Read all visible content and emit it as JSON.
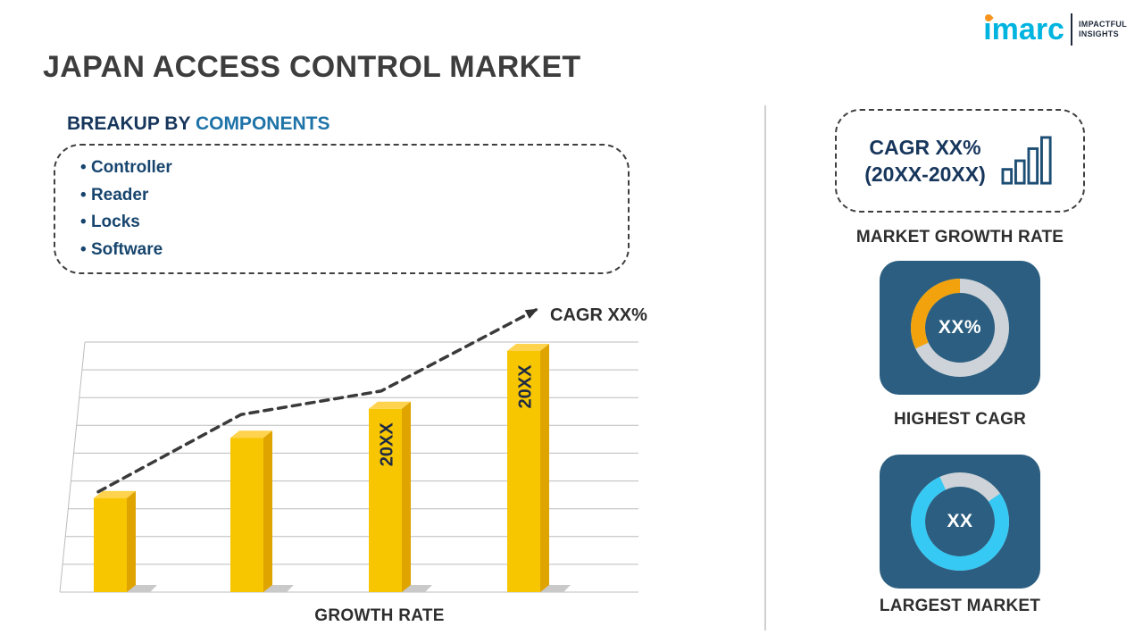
{
  "header": {
    "title": "JAPAN ACCESS CONTROL MARKET",
    "logo": {
      "brand": "imarc",
      "tagline": [
        "IMPACTFUL",
        "INSIGHTS"
      ]
    }
  },
  "breakup": {
    "heading_prefix": "BREAKUP BY ",
    "heading_highlight": "COMPONENTS",
    "items": [
      "Controller",
      "Reader",
      "Locks",
      "Software"
    ]
  },
  "chart_data": {
    "type": "bar",
    "categories": [
      "",
      "",
      "20XX",
      "20XX"
    ],
    "values": [
      39,
      64,
      76,
      100
    ],
    "ylim": [
      0,
      100
    ],
    "grid": true,
    "xlabel": "GROWTH RATE",
    "ylabel": "",
    "bar_color": "#F7C600",
    "trend_line": {
      "style": "dashed-arrow",
      "label": "CAGR XX%"
    }
  },
  "sidebar": {
    "cagr_box": {
      "line1": "CAGR XX%",
      "line2": "(20XX-20XX)"
    },
    "growth_rate_label": "MARKET GROWTH RATE",
    "highest_cagr": {
      "value": "XX%",
      "label": "HIGHEST CAGR",
      "ring_color": "#F2A20D",
      "fraction": 0.32
    },
    "largest_market": {
      "value": "XX",
      "label": "LARGEST MARKET",
      "ring_color": "#36C9F4",
      "fraction": 0.78
    }
  },
  "colors": {
    "accent_navy": "#17365C",
    "highlight_blue": "#1E73A8",
    "box_navy": "#2B5E80",
    "bar_yellow": "#F7C600",
    "donut_gold": "#F2A20D",
    "donut_cyan": "#36C9F4",
    "logo_cyan": "#00B4E0",
    "logo_orange": "#F7941D",
    "divider_gray": "#CFCFCF"
  }
}
